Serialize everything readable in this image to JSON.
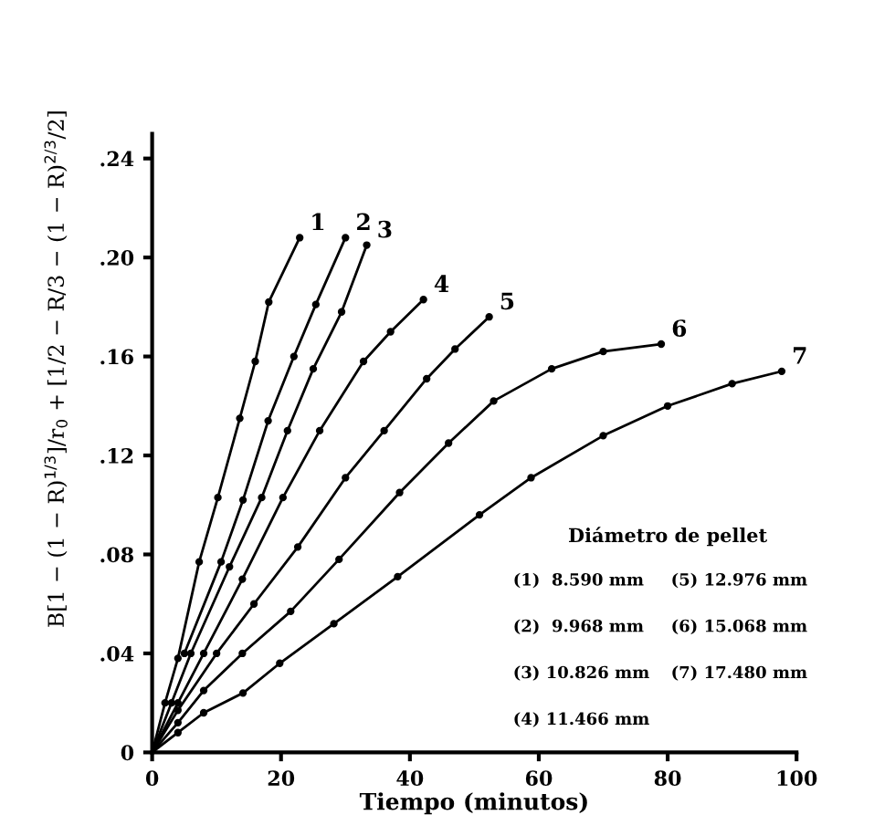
{
  "chart_data": {
    "type": "line",
    "xlabel": "Tiempo (minutos)",
    "ylabel": "B[1 − (1 − R)$^{1/3}$]/r$_{0}$ + [1/2 − R/3 − (1 − R)$^{2/3}$/2]",
    "xlim": [
      0,
      100
    ],
    "xticks": [
      0,
      20,
      40,
      60,
      80,
      100
    ],
    "ylim": [
      0,
      0.25
    ],
    "yticks": [
      0,
      {
        "value": 0.04,
        "label": ".04"
      },
      {
        "value": 0.08,
        "label": ".08"
      },
      {
        "value": 0.12,
        "label": ".12"
      },
      {
        "value": 0.16,
        "label": ".16"
      },
      {
        "value": 0.2,
        "label": ".20"
      },
      {
        "value": 0.24,
        "label": ".24"
      }
    ],
    "grid": false,
    "legend": false,
    "marker": "circle",
    "line_style": "solid",
    "series": [
      {
        "name": "1",
        "color": "#000000",
        "x": [
          0,
          2,
          4,
          7.3,
          10.2,
          13.6,
          16,
          18.1,
          22.9
        ],
        "values": [
          0,
          0.02,
          0.038,
          0.077,
          0.103,
          0.135,
          0.158,
          0.182,
          0.208
        ]
      },
      {
        "name": "2",
        "color": "#000000",
        "x": [
          0,
          2.5,
          5,
          10.7,
          14.1,
          18,
          22,
          25.4,
          30
        ],
        "values": [
          0,
          null,
          0.04,
          0.077,
          0.102,
          0.134,
          0.16,
          0.181,
          0.208
        ]
      },
      {
        "name": "3",
        "color": "#000000",
        "x": [
          0,
          3,
          6,
          12,
          17,
          21,
          25,
          29.4,
          33.3
        ],
        "values": [
          0,
          0.02,
          0.04,
          0.075,
          0.103,
          0.13,
          0.155,
          0.178,
          0.205
        ]
      },
      {
        "name": "4",
        "color": "#000000",
        "x": [
          0,
          4,
          8,
          14,
          20.3,
          26,
          32.8,
          37,
          42.1
        ],
        "values": [
          0,
          0.02,
          0.04,
          0.07,
          0.103,
          0.13,
          0.158,
          0.17,
          0.183
        ]
      },
      {
        "name": "5",
        "color": "#000000",
        "x": [
          0,
          4,
          10,
          15.8,
          22.6,
          30,
          36,
          42.6,
          47,
          52.3
        ],
        "values": [
          0,
          0.017,
          0.04,
          0.06,
          0.083,
          0.111,
          0.13,
          0.151,
          0.163,
          0.176
        ]
      },
      {
        "name": "6",
        "color": "#000000",
        "x": [
          0,
          4,
          8,
          14,
          21.5,
          29,
          38.4,
          46,
          53,
          62,
          70,
          79
        ],
        "values": [
          0,
          0.012,
          0.025,
          0.04,
          0.057,
          0.078,
          0.105,
          0.125,
          0.142,
          0.155,
          0.162,
          0.165
        ]
      },
      {
        "name": "7",
        "color": "#000000",
        "x": [
          0,
          4,
          8,
          14.1,
          19.8,
          28.2,
          38.1,
          50.8,
          58.8,
          70,
          80,
          90,
          97.7
        ],
        "values": [
          0,
          0.008,
          0.016,
          0.024,
          0.036,
          0.052,
          0.071,
          0.096,
          0.111,
          0.128,
          0.14,
          0.149,
          0.154
        ]
      }
    ],
    "annotations": [
      "Diámetro de pellet",
      "(1)  8.590 mm",
      "(5) 12.976 mm",
      "(2)  9.968 mm",
      "(6) 15.068 mm",
      "(3) 10.826 mm",
      "(7) 17.480 mm",
      "(4) 11.466 mm"
    ]
  }
}
